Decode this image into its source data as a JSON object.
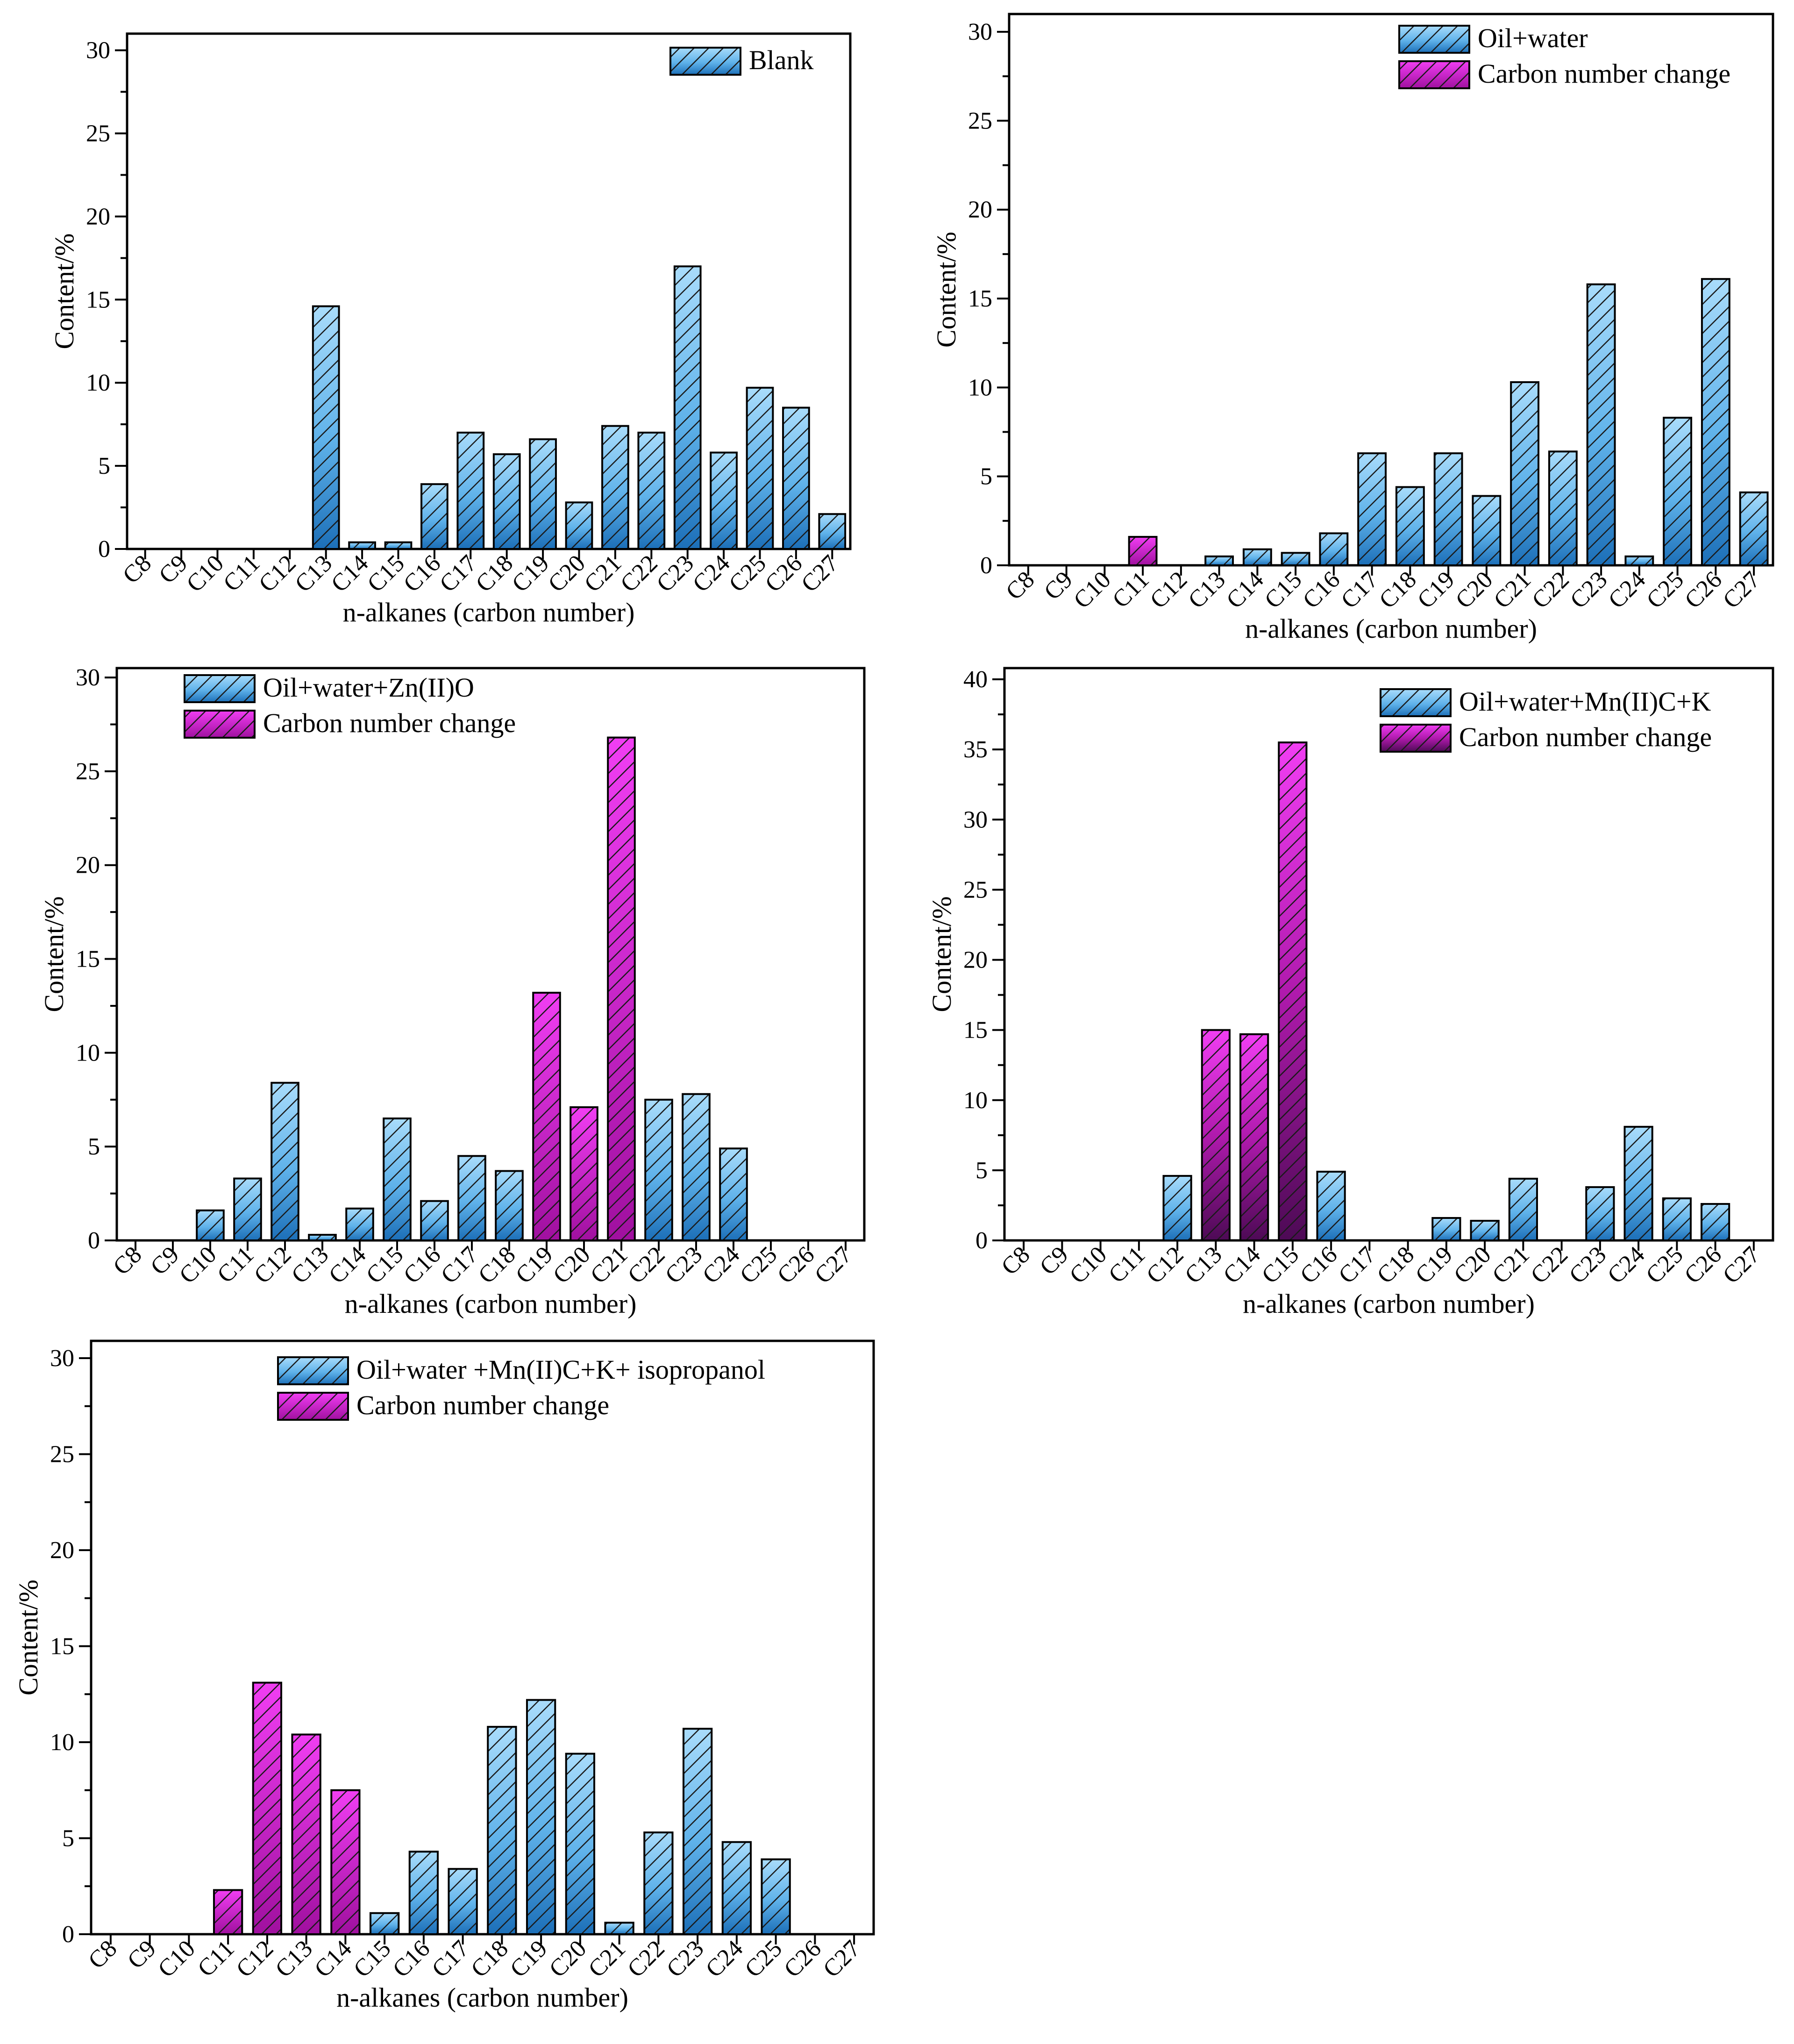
{
  "colors": {
    "blue_top": "#a9dcfb",
    "blue_mid": "#5fb2ea",
    "blue_bottom": "#1c6fb8",
    "magenta_top": "#f13ef3",
    "magenta_bottom": "#a0109f",
    "hatch": "#1a1a1a"
  },
  "chart_data": [
    {
      "type": "bar",
      "title": "",
      "xlabel": "n-alkanes (carbon number)",
      "ylabel": "Content/%",
      "ylim": [
        0,
        31
      ],
      "yticks": [
        "0",
        "5",
        "10",
        "15",
        "20",
        "25",
        "30"
      ],
      "categories": [
        "C8",
        "C9",
        "C10",
        "C11",
        "C12",
        "C13",
        "C14",
        "C15",
        "C16",
        "C17",
        "C18",
        "C19",
        "C20",
        "C21",
        "C22",
        "C23",
        "C24",
        "C25",
        "C26",
        "C27"
      ],
      "legend_position": "top-right",
      "series": [
        {
          "name": "Blank",
          "kind": "blue",
          "values": [
            0,
            0,
            0,
            0,
            0,
            14.6,
            0.4,
            0.4,
            3.9,
            7.0,
            5.7,
            6.6,
            2.8,
            7.4,
            7.0,
            17.0,
            5.8,
            9.7,
            8.5,
            2.1
          ]
        }
      ]
    },
    {
      "type": "bar",
      "title": "",
      "xlabel": "n-alkanes (carbon number)",
      "ylabel": "Content/%",
      "ylim": [
        0,
        31
      ],
      "yticks": [
        "0",
        "5",
        "10",
        "15",
        "20",
        "25",
        "30"
      ],
      "categories": [
        "C8",
        "C9",
        "C10",
        "C11",
        "C12",
        "C13",
        "C14",
        "C15",
        "C16",
        "C17",
        "C18",
        "C19",
        "C20",
        "C21",
        "C22",
        "C23",
        "C24",
        "C25",
        "C26",
        "C27"
      ],
      "legend_position": "top-right",
      "series": [
        {
          "name": "Oil+water",
          "kind": "blue",
          "values": [
            0,
            0,
            0,
            0,
            0,
            0.5,
            0.9,
            0.7,
            1.8,
            6.3,
            4.4,
            6.3,
            3.9,
            10.3,
            6.4,
            15.8,
            0.5,
            8.3,
            16.1,
            4.1
          ]
        },
        {
          "name": "Carbon number change",
          "kind": "magenta",
          "values": [
            0,
            0,
            0,
            1.6,
            0,
            0,
            0,
            0,
            0,
            0,
            0,
            0,
            0,
            0,
            0,
            0,
            0,
            0,
            0,
            0
          ]
        }
      ]
    },
    {
      "type": "bar",
      "title": "",
      "xlabel": "n-alkanes (carbon number)",
      "ylabel": "Content/%",
      "ylim": [
        0,
        30.5
      ],
      "yticks": [
        "0",
        "5",
        "10",
        "15",
        "20",
        "25",
        "30"
      ],
      "categories": [
        "C8",
        "C9",
        "C10",
        "C11",
        "C12",
        "C13",
        "C14",
        "C15",
        "C16",
        "C17",
        "C18",
        "C19",
        "C20",
        "C21",
        "C22",
        "C23",
        "C24",
        "C25",
        "C26",
        "C27"
      ],
      "legend_position": "top-left",
      "series": [
        {
          "name": "Oil+water+Zn(II)O",
          "kind": "blue",
          "values": [
            0,
            0,
            1.6,
            3.3,
            8.4,
            0.3,
            1.7,
            6.5,
            2.1,
            4.5,
            3.7,
            0,
            0,
            0,
            7.5,
            7.8,
            4.9,
            0,
            0,
            0
          ]
        },
        {
          "name": "Carbon number change",
          "kind": "magenta",
          "values": [
            0,
            0,
            0,
            0,
            0,
            0,
            0,
            0,
            0,
            0,
            0,
            13.2,
            7.1,
            26.8,
            0,
            0,
            0,
            0,
            0,
            0
          ]
        }
      ]
    },
    {
      "type": "bar",
      "title": "",
      "xlabel": "n-alkanes (carbon number)",
      "ylabel": "Content/%",
      "ylim": [
        0,
        40.8
      ],
      "yticks": [
        "0",
        "5",
        "10",
        "15",
        "20",
        "25",
        "30",
        "35",
        "40"
      ],
      "categories": [
        "C8",
        "C9",
        "C10",
        "C11",
        "C12",
        "C13",
        "C14",
        "C15",
        "C16",
        "C17",
        "C18",
        "C19",
        "C20",
        "C21",
        "C22",
        "C23",
        "C24",
        "C25",
        "C26",
        "C27"
      ],
      "legend_position": "top-right",
      "series": [
        {
          "name": "Oil+water+Mn(II)C+K",
          "kind": "blue",
          "values": [
            0,
            0,
            0,
            0,
            4.6,
            0,
            0,
            0,
            4.9,
            0,
            0,
            1.6,
            1.4,
            4.4,
            0,
            3.8,
            8.1,
            3.0,
            2.6,
            0
          ]
        },
        {
          "name": "Carbon number change",
          "kind": "magenta_dark",
          "values": [
            0,
            0,
            0,
            0,
            0,
            15.0,
            14.7,
            35.5,
            0,
            0,
            0,
            0,
            0,
            0,
            0,
            0,
            0,
            0,
            0,
            0
          ]
        }
      ]
    },
    {
      "type": "bar",
      "title": "",
      "xlabel": "n-alkanes (carbon number)",
      "ylabel": "Content/%",
      "ylim": [
        0,
        30.9
      ],
      "yticks": [
        "0",
        "5",
        "10",
        "15",
        "20",
        "25",
        "30"
      ],
      "categories": [
        "C8",
        "C9",
        "C10",
        "C11",
        "C12",
        "C13",
        "C14",
        "C15",
        "C16",
        "C17",
        "C18",
        "C19",
        "C20",
        "C21",
        "C22",
        "C23",
        "C24",
        "C25",
        "C26",
        "C27"
      ],
      "legend_position": "top-right",
      "series": [
        {
          "name": "Oil+water +Mn(II)C+K+ isopropanol",
          "kind": "blue",
          "values": [
            0,
            0,
            0,
            0,
            0,
            0,
            0,
            1.1,
            4.3,
            3.4,
            10.8,
            12.2,
            9.4,
            0.6,
            5.3,
            10.7,
            4.8,
            3.9,
            0,
            0
          ]
        },
        {
          "name": "Carbon number change",
          "kind": "magenta",
          "values": [
            0,
            0,
            0,
            2.3,
            13.1,
            10.4,
            7.5,
            0,
            0,
            0,
            0,
            0,
            0,
            0,
            0,
            0,
            0,
            0,
            0,
            0
          ]
        }
      ]
    }
  ]
}
